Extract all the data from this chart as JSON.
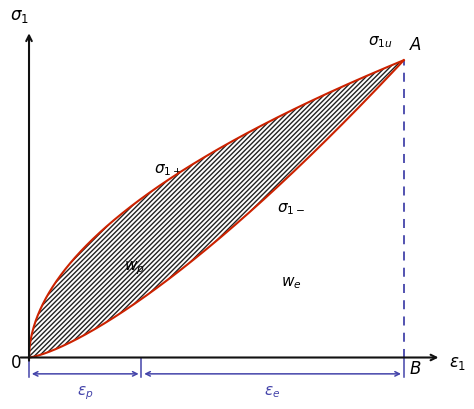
{
  "eps_p": 0.3,
  "eps_1": 1.0,
  "curve_color": "#cc2200",
  "hatch_color": "#222222",
  "blue_color": "#4444aa",
  "axis_color": "#111111",
  "alpha_upper": 0.52,
  "alpha_lower": 1.35,
  "figsize": [
    4.74,
    4.09
  ],
  "dpi": 100,
  "fs_main": 12,
  "fs_label": 11
}
